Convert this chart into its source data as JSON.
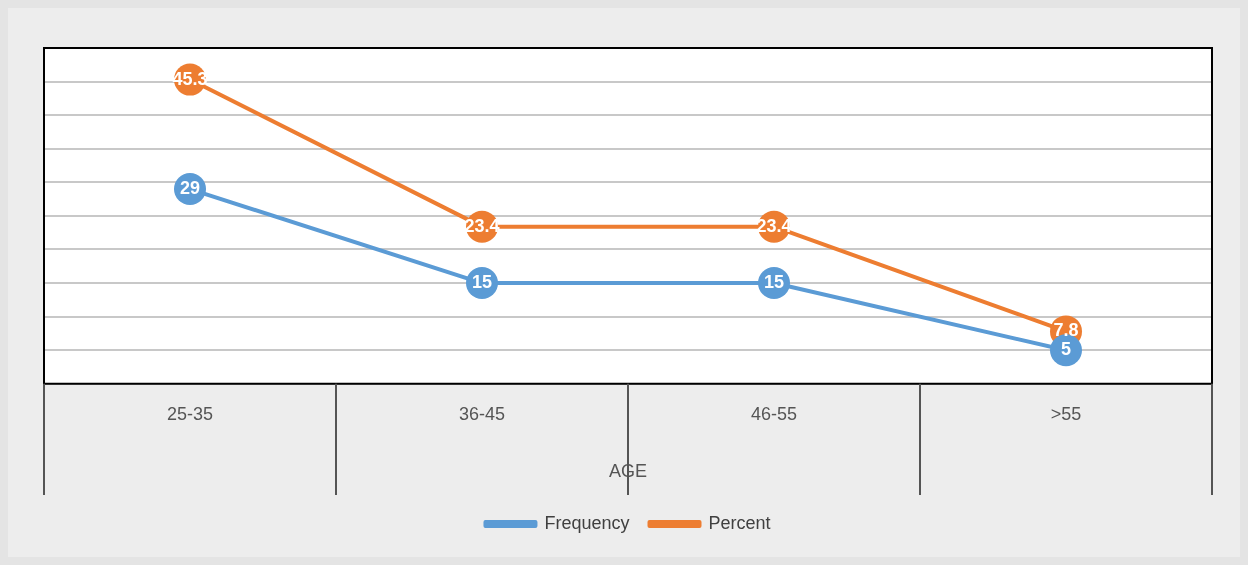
{
  "chart_data": {
    "type": "line",
    "xlabel": "AGE",
    "categories": [
      "25-35",
      "36-45",
      "46-55",
      ">55"
    ],
    "series": [
      {
        "name": "Frequency",
        "color": "#5b9bd5",
        "values": [
          29,
          15,
          15,
          5
        ]
      },
      {
        "name": "Percent",
        "color": "#ed7d31",
        "values": [
          45.3,
          23.4,
          23.4,
          7.8
        ]
      }
    ],
    "ylim": [
      0,
      50
    ],
    "yticks": [
      {
        "value": 0,
        "label": null
      },
      {
        "value": 5,
        "label": null
      },
      {
        "value": 10,
        "label": null
      },
      {
        "value": 15,
        "label": null
      },
      {
        "value": 20,
        "label": null
      },
      {
        "value": 25,
        "label": null
      },
      {
        "value": 30,
        "label": null
      },
      {
        "value": 35,
        "label": null
      },
      {
        "value": 40,
        "label": null
      },
      {
        "value": 45,
        "label": null
      },
      {
        "value": 50,
        "label": null
      }
    ],
    "grid": "y",
    "legend": "bottom",
    "tick_labels": "x",
    "marker": "circle",
    "data_labels": true
  }
}
